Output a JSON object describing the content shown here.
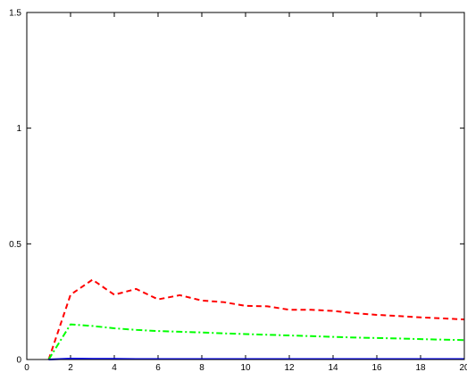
{
  "chart_data": {
    "type": "line",
    "title": "",
    "xlabel": "",
    "ylabel": "",
    "xlim": [
      0,
      20
    ],
    "ylim": [
      0,
      1.5
    ],
    "x_ticks": [
      0,
      2,
      4,
      6,
      8,
      10,
      12,
      14,
      16,
      18,
      20
    ],
    "y_ticks": [
      0,
      0.5,
      1,
      1.5
    ],
    "x_tick_labels": [
      "0",
      "2",
      "4",
      "6",
      "8",
      "10",
      "12",
      "14",
      "16",
      "18",
      "20"
    ],
    "y_tick_labels": [
      "0",
      "0.5",
      "1",
      "1.5"
    ],
    "grid": false,
    "legend": "none",
    "x": [
      1,
      2,
      3,
      4,
      5,
      6,
      7,
      8,
      9,
      10,
      11,
      12,
      13,
      14,
      15,
      16,
      17,
      18,
      19,
      20
    ],
    "series": [
      {
        "color": "#ff0000",
        "line_style": "dashed",
        "values": [
          0,
          0.28,
          0.345,
          0.28,
          0.305,
          0.26,
          0.278,
          0.255,
          0.248,
          0.232,
          0.23,
          0.215,
          0.215,
          0.21,
          0.2,
          0.193,
          0.188,
          0.182,
          0.178,
          0.173
        ]
      },
      {
        "color": "#00ff00",
        "line_style": "dash-dot",
        "values": [
          0,
          0.152,
          0.145,
          0.135,
          0.128,
          0.123,
          0.12,
          0.117,
          0.113,
          0.11,
          0.107,
          0.104,
          0.101,
          0.098,
          0.095,
          0.093,
          0.091,
          0.088,
          0.086,
          0.084
        ]
      },
      {
        "color": "#0000ff",
        "line_style": "solid",
        "values": [
          0,
          0.004,
          0.003,
          0.003,
          0.002,
          0.002,
          0.002,
          0.002,
          0.002,
          0.002,
          0.002,
          0.002,
          0.002,
          0.002,
          0.002,
          0.002,
          0.002,
          0.002,
          0.002,
          0.002
        ]
      }
    ]
  }
}
